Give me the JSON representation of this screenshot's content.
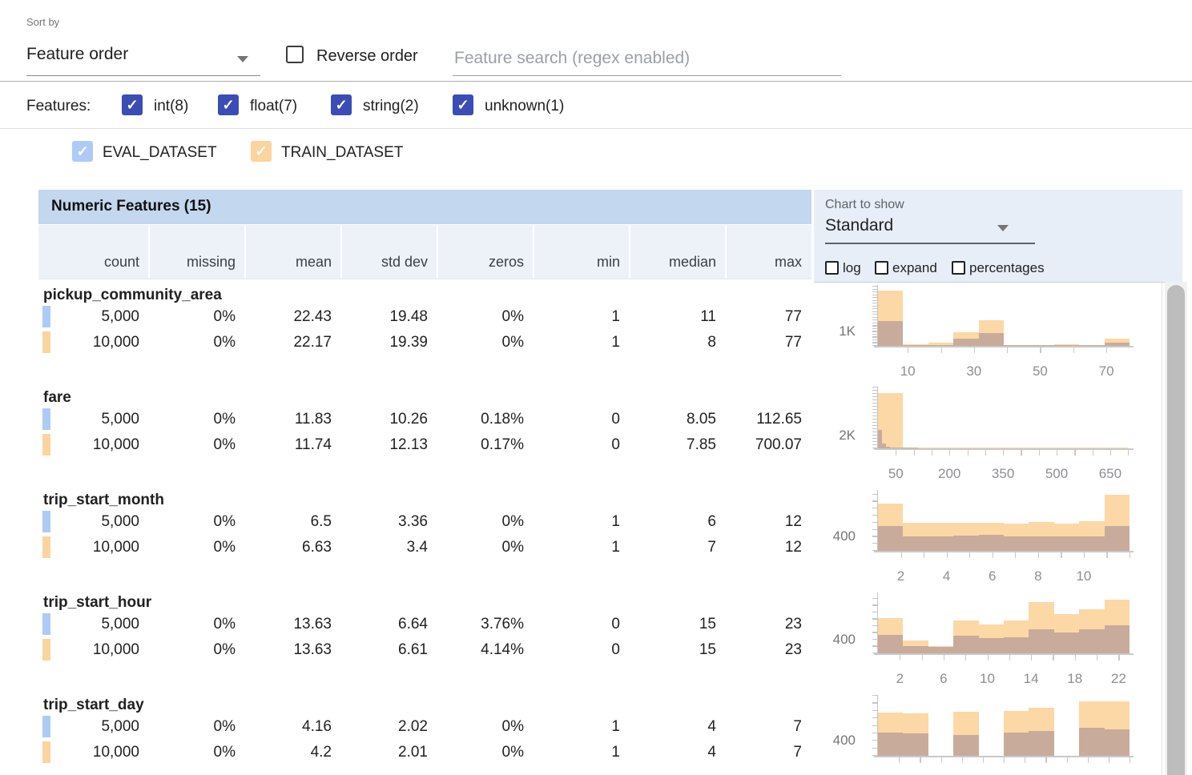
{
  "toolbar": {
    "sort_by_label": "Sort by",
    "sort_by_value": "Feature order",
    "reverse_order_label": "Reverse order",
    "search_placeholder": "Feature search (regex enabled)"
  },
  "feature_filters": {
    "label": "Features:",
    "items": [
      {
        "label": "int(8)",
        "checked": true
      },
      {
        "label": "float(7)",
        "checked": true
      },
      {
        "label": "string(2)",
        "checked": true
      },
      {
        "label": "unknown(1)",
        "checked": true
      }
    ]
  },
  "datasets": [
    {
      "name": "EVAL_DATASET",
      "color": "#aecbf5",
      "checked": true
    },
    {
      "name": "TRAIN_DATASET",
      "color": "#fbd49e",
      "checked": true
    }
  ],
  "table": {
    "title": "Numeric Features (15)",
    "columns": [
      "count",
      "missing",
      "mean",
      "std dev",
      "zeros",
      "min",
      "median",
      "max"
    ],
    "features": [
      {
        "name": "pickup_community_area",
        "rows": [
          [
            "5,000",
            "0%",
            "22.43",
            "19.48",
            "0%",
            "1",
            "11",
            "77"
          ],
          [
            "10,000",
            "0%",
            "22.17",
            "19.39",
            "0%",
            "1",
            "8",
            "77"
          ]
        ]
      },
      {
        "name": "fare",
        "rows": [
          [
            "5,000",
            "0%",
            "11.83",
            "10.26",
            "0.18%",
            "0",
            "8.05",
            "112.65"
          ],
          [
            "10,000",
            "0%",
            "11.74",
            "12.13",
            "0.17%",
            "0",
            "7.85",
            "700.07"
          ]
        ]
      },
      {
        "name": "trip_start_month",
        "rows": [
          [
            "5,000",
            "0%",
            "6.5",
            "3.36",
            "0%",
            "1",
            "6",
            "12"
          ],
          [
            "10,000",
            "0%",
            "6.63",
            "3.4",
            "0%",
            "1",
            "7",
            "12"
          ]
        ]
      },
      {
        "name": "trip_start_hour",
        "rows": [
          [
            "5,000",
            "0%",
            "13.63",
            "6.64",
            "3.76%",
            "0",
            "15",
            "23"
          ],
          [
            "10,000",
            "0%",
            "13.63",
            "6.61",
            "4.14%",
            "0",
            "15",
            "23"
          ]
        ]
      },
      {
        "name": "trip_start_day",
        "rows": [
          [
            "5,000",
            "0%",
            "4.16",
            "2.02",
            "0%",
            "1",
            "4",
            "7"
          ],
          [
            "10,000",
            "0%",
            "4.2",
            "2.01",
            "0%",
            "1",
            "4",
            "7"
          ]
        ]
      }
    ]
  },
  "chart_controls": {
    "label": "Chart to show",
    "value": "Standard",
    "options": [
      "log",
      "expand",
      "percentages"
    ]
  },
  "chart_data": [
    {
      "type": "histogram",
      "feature": "pickup_community_area",
      "xmin": 1,
      "xmax": 77,
      "xticks": [
        10,
        20,
        30,
        40,
        50,
        60,
        70
      ],
      "xtick_labels": [
        10,
        30,
        50,
        70
      ],
      "ymax": 4200,
      "ystep": 200,
      "ylabel": {
        "text": "1K",
        "value": 1000
      },
      "series": [
        {
          "dataset": "TRAIN_DATASET",
          "x0": 1,
          "bin_width": 7.6,
          "counts": [
            3900,
            120,
            200,
            960,
            1800,
            40,
            40,
            120,
            30,
            520
          ]
        },
        {
          "dataset": "EVAL_DATASET",
          "x0": 1,
          "bin_width": 7.6,
          "counts": [
            1780,
            70,
            80,
            500,
            880,
            20,
            20,
            60,
            15,
            210
          ]
        }
      ]
    },
    {
      "type": "histogram",
      "feature": "fare",
      "xmin": 0,
      "xmax": 704,
      "xticks": [
        50,
        100,
        150,
        200,
        250,
        300,
        350,
        400,
        450,
        500,
        550,
        600,
        650,
        700
      ],
      "xtick_labels": [
        50,
        200,
        350,
        500,
        650
      ],
      "ymax": 9250,
      "ystep": 500,
      "ylabel": {
        "text": "2K",
        "value": 2000
      },
      "series": [
        {
          "dataset": "TRAIN_DATASET",
          "x0": 0,
          "bin_width": 70,
          "counts": [
            8600,
            40,
            12,
            6,
            4,
            3,
            2,
            2,
            1,
            1
          ]
        },
        {
          "dataset": "EVAL_DATASET",
          "x0": 0,
          "bin_width": 11.27,
          "counts": [
            2900,
            700,
            300,
            160,
            90,
            55,
            35,
            25,
            15,
            10
          ]
        }
      ]
    },
    {
      "type": "histogram",
      "feature": "trip_start_month",
      "xmin": 1,
      "xmax": 12,
      "xticks": [
        2,
        3,
        4,
        5,
        6,
        7,
        8,
        9,
        10,
        11,
        12
      ],
      "xtick_labels": [
        2,
        4,
        6,
        8,
        10
      ],
      "ymax": 1680,
      "ystep": 200,
      "ylabel": {
        "text": "400",
        "value": 400
      },
      "series": [
        {
          "dataset": "TRAIN_DATASET",
          "x0": 1,
          "bin_width": 1.1,
          "counts": [
            1350,
            790,
            800,
            805,
            790,
            780,
            815,
            765,
            830,
            1600
          ]
        },
        {
          "dataset": "EVAL_DATASET",
          "x0": 1,
          "bin_width": 1.1,
          "counts": [
            700,
            415,
            420,
            440,
            445,
            420,
            410,
            420,
            415,
            700
          ]
        }
      ]
    },
    {
      "type": "histogram",
      "feature": "trip_start_hour",
      "xmin": 0,
      "xmax": 23,
      "xticks": [
        2,
        4,
        6,
        8,
        10,
        12,
        14,
        16,
        18,
        20,
        22
      ],
      "xtick_labels": [
        2,
        6,
        10,
        14,
        18,
        22
      ],
      "ymax": 1740,
      "ystep": 200,
      "ylabel": {
        "text": "400",
        "value": 400
      },
      "series": [
        {
          "dataset": "TRAIN_DATASET",
          "x0": 0,
          "bin_width": 2.3,
          "counts": [
            1040,
            375,
            205,
            970,
            845,
            965,
            1500,
            1160,
            1300,
            1575
          ]
        },
        {
          "dataset": "EVAL_DATASET",
          "x0": 0,
          "bin_width": 2.3,
          "counts": [
            550,
            205,
            180,
            525,
            440,
            460,
            715,
            620,
            715,
            825
          ]
        }
      ]
    },
    {
      "type": "histogram",
      "feature": "trip_start_day",
      "xmin": 1,
      "xmax": 7,
      "xticks": [
        1.5,
        2,
        2.5,
        3,
        3.5,
        4,
        4.5,
        5,
        5.5,
        6,
        6.5,
        7
      ],
      "xtick_labels": [],
      "ymax": 1580,
      "ystep": 200,
      "ylabel": {
        "text": "400",
        "value": 400
      },
      "series": [
        {
          "dataset": "TRAIN_DATASET",
          "x0": 1,
          "bin_width": 0.6,
          "counts": [
            1150,
            1130,
            0,
            1180,
            0,
            1190,
            1280,
            0,
            1460,
            1450
          ]
        },
        {
          "dataset": "EVAL_DATASET",
          "x0": 1,
          "bin_width": 0.6,
          "counts": [
            620,
            600,
            0,
            560,
            0,
            620,
            660,
            0,
            750,
            710
          ]
        }
      ]
    }
  ],
  "colors": {
    "accent_indigo": "#3b4db5",
    "eval_swatch": "#aecbf5",
    "train_swatch": "#fbd49e",
    "bar_train": "#fbd8a6",
    "bar_eval_overlap": "#c9ab9b",
    "table_header_bg": "#c3d7ee",
    "subheader_bg": "#edf2f9",
    "panel_bg": "#e7eef8",
    "axis_gray": "#c9c9c9"
  }
}
